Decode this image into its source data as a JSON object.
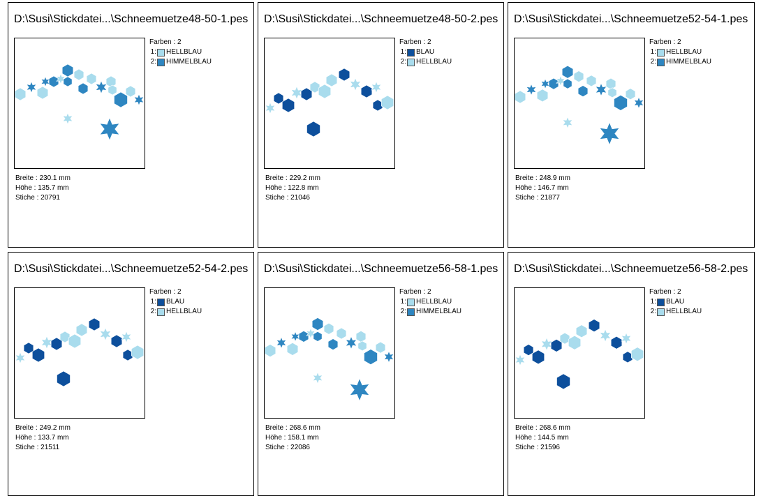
{
  "colors": {
    "HELLBLAU": "#a9dced",
    "HIMMELBLAU": "#2e86c1",
    "BLAU": "#0d4f9c"
  },
  "labels": {
    "farben": "Farben : 2",
    "breite": "Breite : ",
    "hoehe": "Höhe : ",
    "stiche": "Stiche : "
  },
  "designs": [
    {
      "title": "D:\\Susi\\Stickdatei...\\Schneemuetze48-50-1.pes",
      "colors": [
        {
          "num": "1:",
          "name": "HELLBLAU"
        },
        {
          "num": "2:",
          "name": "HIMMELBLAU"
        }
      ],
      "breite": "230.1 mm",
      "hoehe": "135.7 mm",
      "stiche": "20791"
    },
    {
      "title": "D:\\Susi\\Stickdatei...\\Schneemuetze48-50-2.pes",
      "colors": [
        {
          "num": "1:",
          "name": "BLAU"
        },
        {
          "num": "2:",
          "name": "HELLBLAU"
        }
      ],
      "breite": "229.2 mm",
      "hoehe": "122.8 mm",
      "stiche": "21046"
    },
    {
      "title": "D:\\Susi\\Stickdatei...\\Schneemuetze52-54-1.pes",
      "colors": [
        {
          "num": "1:",
          "name": "HELLBLAU"
        },
        {
          "num": "2:",
          "name": "HIMMELBLAU"
        }
      ],
      "breite": "248.9 mm",
      "hoehe": "146.7 mm",
      "stiche": "21877"
    },
    {
      "title": "D:\\Susi\\Stickdatei...\\Schneemuetze52-54-2.pes",
      "colors": [
        {
          "num": "1:",
          "name": "BLAU"
        },
        {
          "num": "2:",
          "name": "HELLBLAU"
        }
      ],
      "breite": "249.2 mm",
      "hoehe": "133.7 mm",
      "stiche": "21511"
    },
    {
      "title": "D:\\Susi\\Stickdatei...\\Schneemuetze56-58-1.pes",
      "colors": [
        {
          "num": "1:",
          "name": "HELLBLAU"
        },
        {
          "num": "2:",
          "name": "HIMMELBLAU"
        }
      ],
      "breite": "268.6 mm",
      "hoehe": "158.1 mm",
      "stiche": "22086"
    },
    {
      "title": "D:\\Susi\\Stickdatei...\\Schneemuetze56-58-2.pes",
      "colors": [
        {
          "num": "1:",
          "name": "BLAU"
        },
        {
          "num": "2:",
          "name": "HELLBLAU"
        }
      ],
      "breite": "268.6 mm",
      "hoehe": "144.5 mm",
      "stiche": "21596"
    }
  ]
}
